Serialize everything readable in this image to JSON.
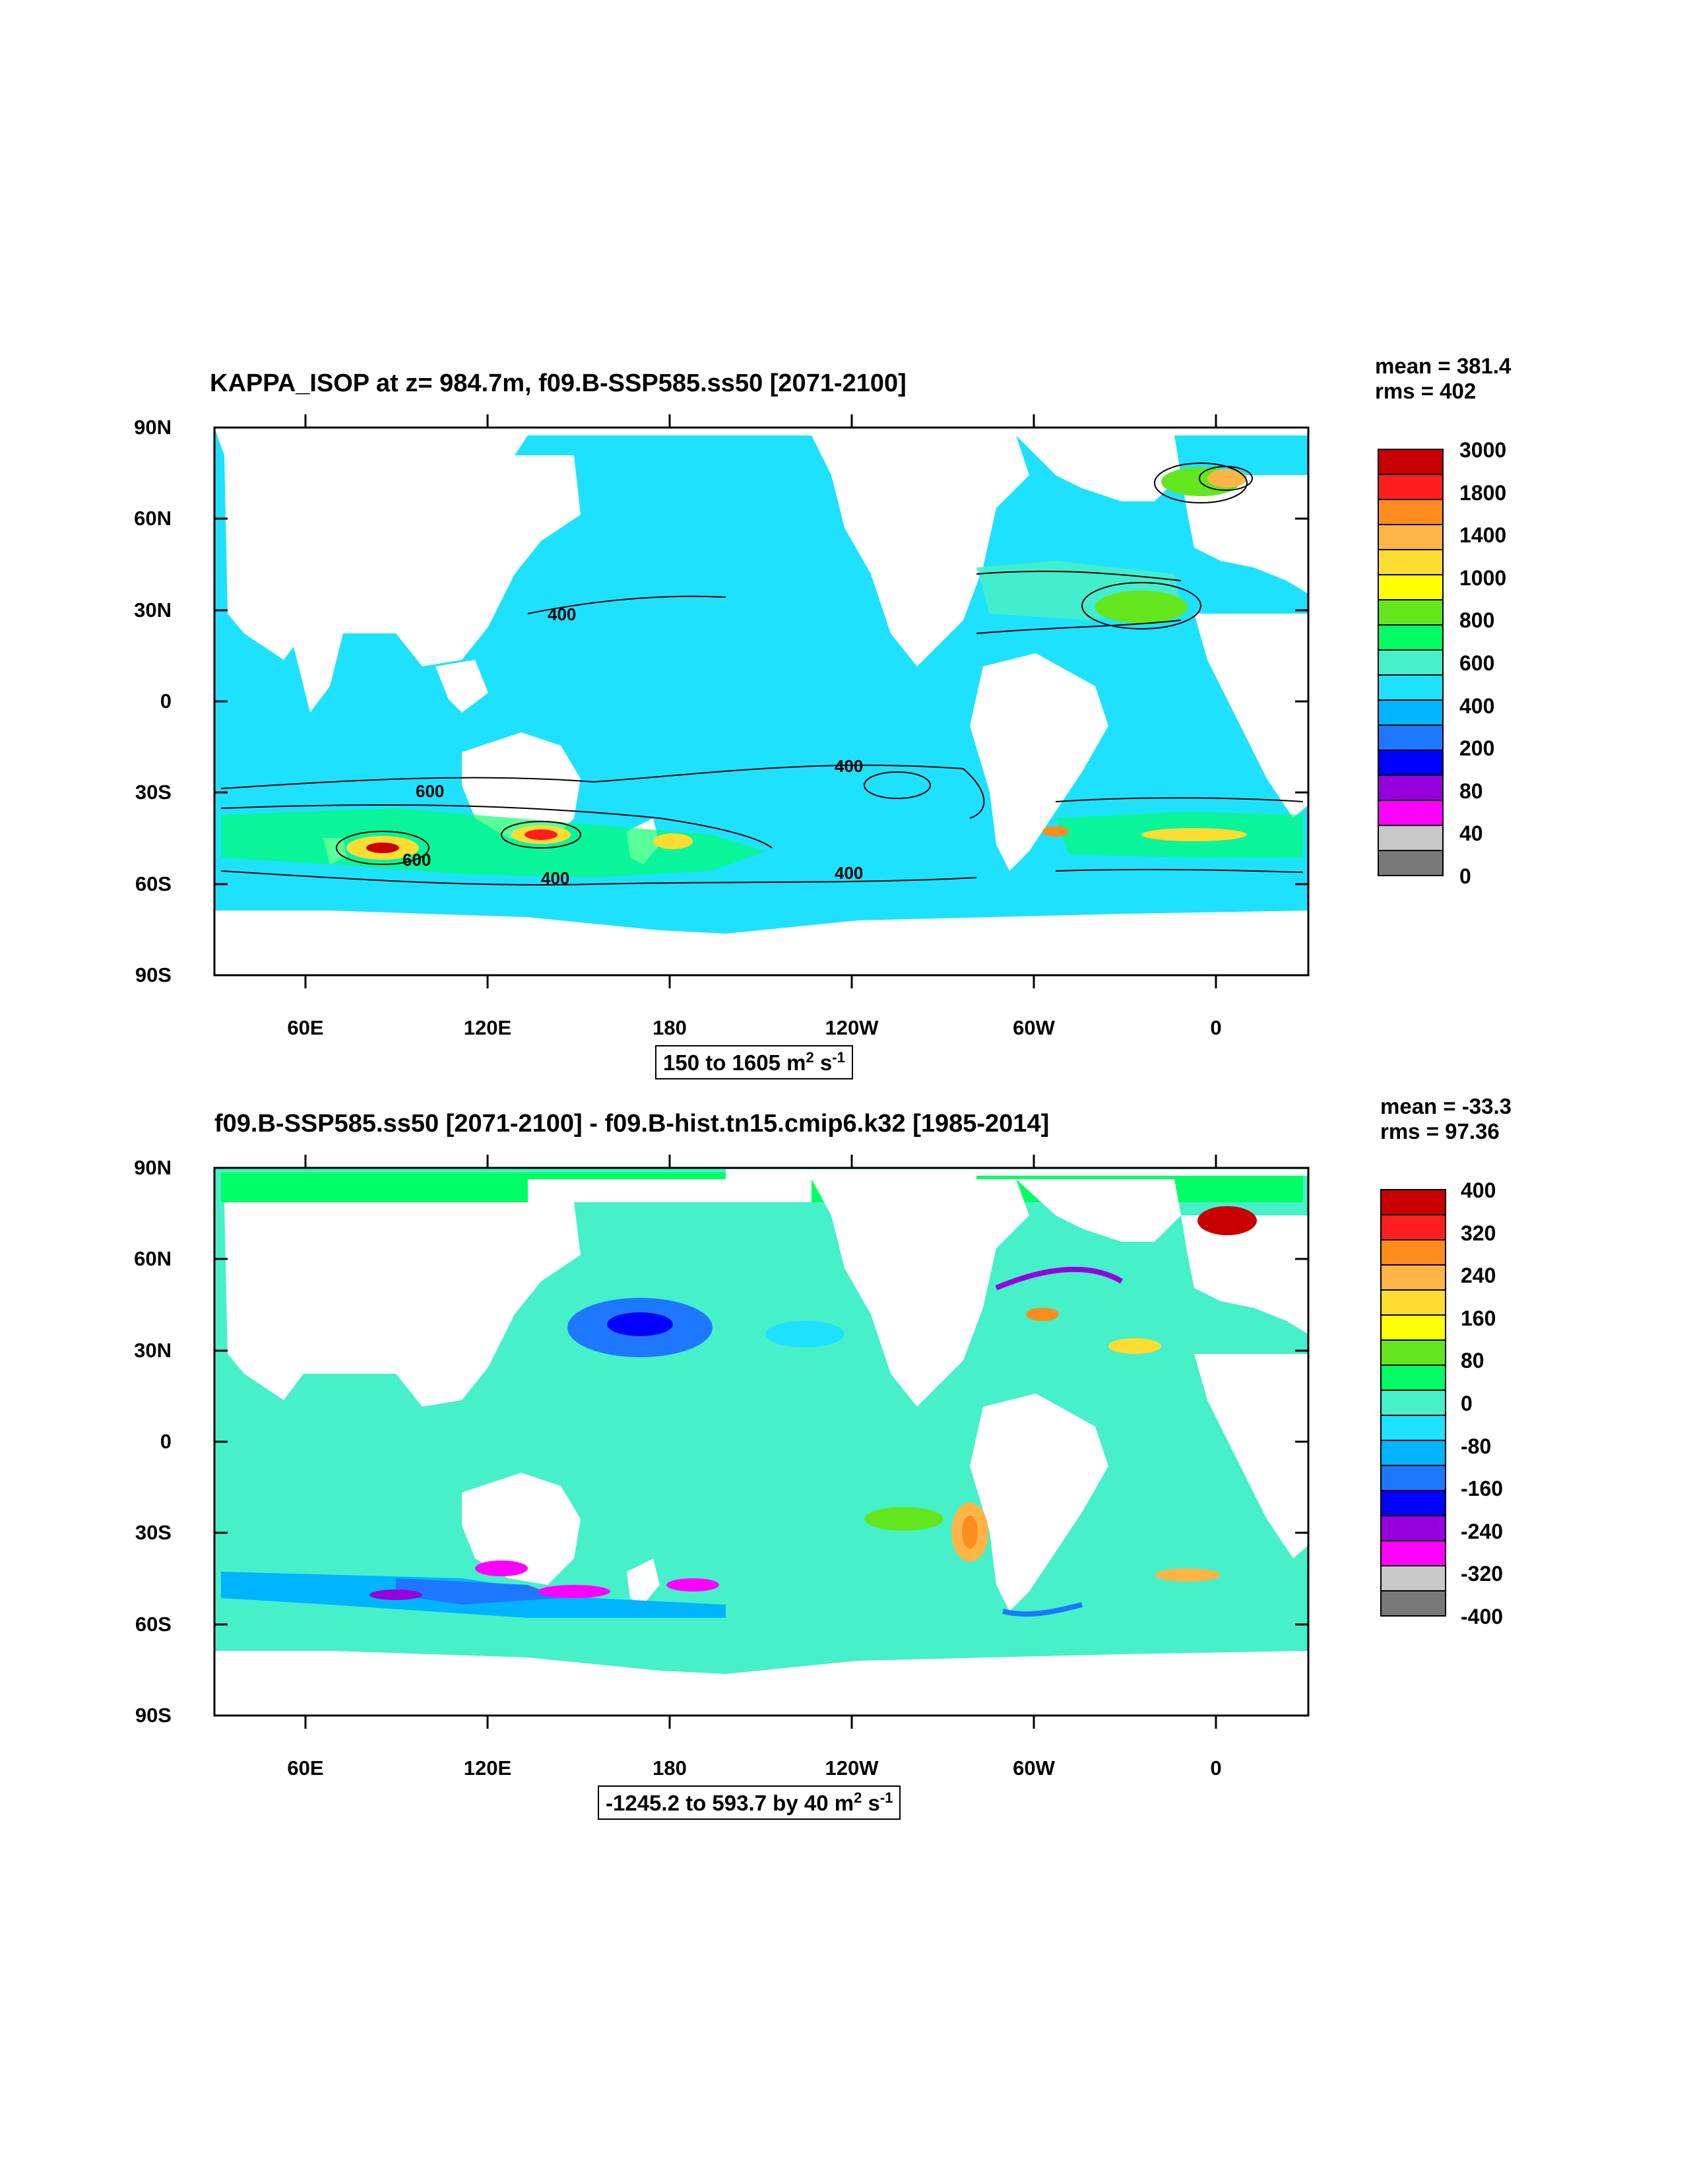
{
  "panels": [
    {
      "title": "KAPPA_ISOP at z= 984.7m, f09.B-SSP585.ss50 [2071-2100]",
      "mean": "mean = 381.4",
      "rms": "rms = 402",
      "y_labels": [
        "90N",
        "60N",
        "30N",
        "0",
        "30S",
        "60S",
        "90S"
      ],
      "x_labels": [
        "60E",
        "120E",
        "180",
        "120W",
        "60W",
        "0"
      ],
      "caption_range": "150 to 1605 m",
      "caption_unit_exp": "2",
      "caption_unit2": " s",
      "caption_unit2_exp": "-1",
      "contour_labels": [
        "400",
        "400",
        "600",
        "600",
        "400",
        "400"
      ],
      "legend": {
        "labels": [
          "3000",
          "1800",
          "1400",
          "1000",
          "800",
          "600",
          "400",
          "200",
          "80",
          "40",
          "0"
        ],
        "colors": [
          "#c80000",
          "#ff1e1e",
          "#ff8c1e",
          "#ffb446",
          "#ffdc32",
          "#ffff00",
          "#64e61e",
          "#00ff64",
          "#46f0c8",
          "#1ee1ff",
          "#00b4ff",
          "#1e78ff",
          "#0000ff",
          "#9600dc",
          "#ff00ff",
          "#c8c8c8",
          "#787878"
        ]
      }
    },
    {
      "title": "f09.B-SSP585.ss50 [2071-2100] - f09.B-hist.tn15.cmip6.k32 [1985-2014]",
      "mean": "mean = -33.3",
      "rms": "rms = 97.36",
      "y_labels": [
        "90N",
        "60N",
        "30N",
        "0",
        "30S",
        "60S",
        "90S"
      ],
      "x_labels": [
        "60E",
        "120E",
        "180",
        "120W",
        "60W",
        "0"
      ],
      "caption_range": "-1245.2 to 593.7 by 40 m",
      "caption_unit_exp": "2",
      "caption_unit2": " s",
      "caption_unit2_exp": "-1",
      "legend": {
        "labels": [
          "400",
          "320",
          "240",
          "160",
          "80",
          "0",
          "-80",
          "-160",
          "-240",
          "-320",
          "-400"
        ],
        "colors": [
          "#c80000",
          "#ff1e1e",
          "#ff8c1e",
          "#ffb446",
          "#ffdc32",
          "#ffff00",
          "#64e61e",
          "#00ff64",
          "#46f0c8",
          "#1ee1ff",
          "#00b4ff",
          "#1e78ff",
          "#0000ff",
          "#9600dc",
          "#ff00ff",
          "#c8c8c8",
          "#787878"
        ]
      }
    }
  ]
}
